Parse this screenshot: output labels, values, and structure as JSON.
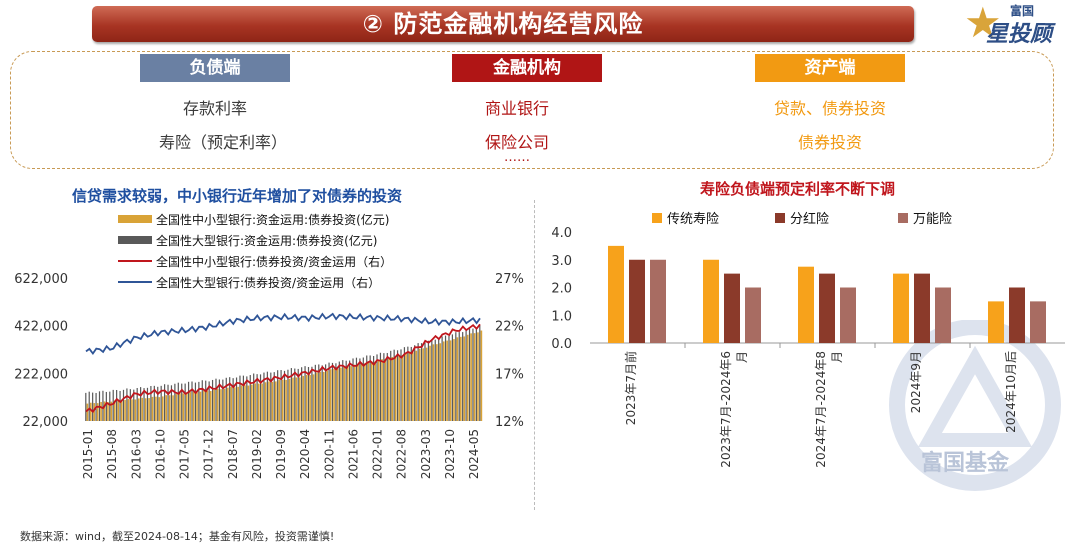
{
  "header": {
    "title": "② 防范金融机构经营风险"
  },
  "logo": {
    "top": "富国",
    "main": "星投顾"
  },
  "overview": {
    "liability": {
      "label": "负债端",
      "items": [
        "存款利率",
        "寿险（预定利率）"
      ]
    },
    "institution": {
      "label": "金融机构",
      "items": [
        "商业银行",
        "保险公司",
        "……"
      ]
    },
    "asset": {
      "label": "资产端",
      "items": [
        "贷款、债券投资",
        "债券投资"
      ]
    }
  },
  "left_chart": {
    "title": "信贷需求较弱，中小银行近年增加了对债券的投资"
  },
  "right_chart": {
    "title": "寿险负债端预定利率不断下调"
  },
  "watermark": {
    "text": "富国基金"
  },
  "footer": {
    "text": "数据来源：wind，截至2024-08-14；基金有风险，投资需谨慎!"
  },
  "colors": {
    "title_bar": "#a83423",
    "liability": "#6a80a3",
    "institution": "#b01515",
    "asset": "#f29a12",
    "small_bank_bar": "#d9a337",
    "large_bank_bar": "#595959",
    "small_bank_line": "#c0161d",
    "large_bank_line": "#2f5597",
    "traditional": "#f7a21b",
    "dividend": "#8b3a2a",
    "universal": "#a86c62"
  },
  "chart_data": [
    {
      "type": "bar+line",
      "x_ticks": [
        "2015-01",
        "2015-08",
        "2016-03",
        "2016-10",
        "2017-05",
        "2017-12",
        "2018-07",
        "2019-02",
        "2019-09",
        "2020-04",
        "2020-11",
        "2021-06",
        "2022-01",
        "2022-08",
        "2023-03",
        "2023-10",
        "2024-05"
      ],
      "y_left_ticks": [
        "622,000",
        "422,000",
        "222,000",
        "22,000"
      ],
      "y_left_range": [
        22000,
        622000
      ],
      "y_right_ticks": [
        "27%",
        "22%",
        "17%",
        "12%"
      ],
      "y_right_range": [
        12,
        27
      ],
      "legend": [
        "全国性中小型银行:资金运用:债券投资(亿元)",
        "全国性大型银行:资金运用:债券投资(亿元)",
        "全国性中小型银行:债券投资/资金运用（右）",
        "全国性大型银行:债券投资/资金运用（右）"
      ],
      "series": [
        {
          "name": "全国性中小型银行:资金运用:债券投资(亿元)",
          "kind": "bar",
          "values_by_tick": [
            95000,
            105000,
            115000,
            125000,
            140000,
            150000,
            165000,
            180000,
            195000,
            215000,
            240000,
            260000,
            280000,
            305000,
            340000,
            370000,
            400000
          ]
        },
        {
          "name": "全国性大型银行:资金运用:债券投资(亿元)",
          "kind": "bar",
          "values_by_tick": [
            140000,
            148000,
            158000,
            170000,
            182000,
            192000,
            205000,
            220000,
            235000,
            250000,
            265000,
            285000,
            305000,
            330000,
            360000,
            390000,
            420000
          ]
        },
        {
          "name": "全国性中小型银行:债券投资/资金运用（右）",
          "kind": "line",
          "values_by_tick": [
            13.0,
            13.8,
            14.8,
            15.1,
            15.0,
            15.4,
            15.8,
            16.2,
            16.6,
            17.1,
            17.6,
            17.9,
            18.3,
            19.0,
            20.5,
            21.5,
            22.0
          ]
        },
        {
          "name": "全国性大型银行:债券投资/资金运用（右）",
          "kind": "line",
          "values_by_tick": [
            19.3,
            19.6,
            20.7,
            21.3,
            21.5,
            21.9,
            22.5,
            22.8,
            22.9,
            22.8,
            23.0,
            22.9,
            22.8,
            22.7,
            22.4,
            22.4,
            22.6
          ]
        }
      ]
    },
    {
      "type": "bar",
      "categories": [
        "2023年7月前",
        "2023年7月-2024年6月",
        "2024年7月-2024年8月",
        "2024年9月",
        "2024年10月后"
      ],
      "y_ticks": [
        "4.0",
        "3.0",
        "2.0",
        "1.0",
        "0.0"
      ],
      "ylim": [
        0,
        4
      ],
      "series": [
        {
          "name": "传统寿险",
          "values": [
            3.5,
            3.0,
            2.75,
            2.5,
            1.5
          ]
        },
        {
          "name": "分红险",
          "values": [
            3.0,
            2.5,
            2.5,
            2.5,
            2.0
          ]
        },
        {
          "name": "万能险",
          "values": [
            3.0,
            2.0,
            2.0,
            2.0,
            1.5
          ]
        }
      ]
    }
  ]
}
